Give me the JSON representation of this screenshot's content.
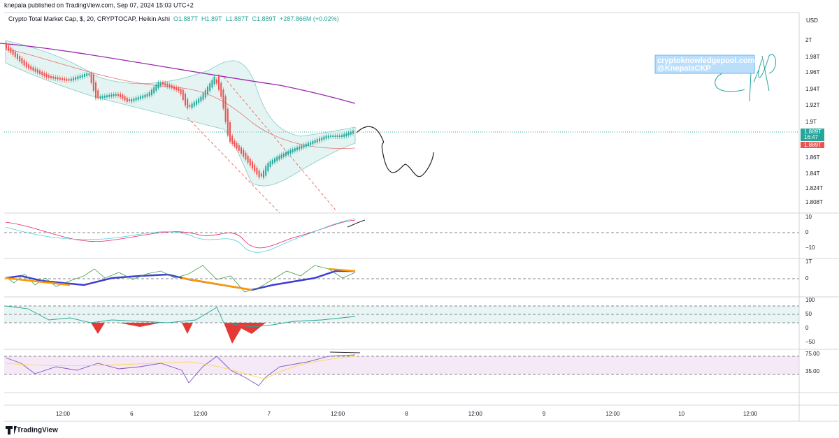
{
  "header": {
    "publisher": "knepala published on TradingView.com, Sep 07, 2024 15:03 UTC+2"
  },
  "legend": {
    "symbol": "Crypto Total Market Cap, $, 20, CRYPTOCAP, Heikin Ashi",
    "ohlc": [
      "O1.887T",
      "H1.89T",
      "L1.887T",
      "C1.889T",
      "+287.866M (+0.02%)"
    ]
  },
  "currency": "USD",
  "price_axis": [
    "2T",
    "1.98T",
    "1.96T",
    "1.94T",
    "1.92T",
    "1.9T",
    "1.86T",
    "1.84T",
    "1.824T",
    "1.808T"
  ],
  "price_tag": {
    "price": "1.889T",
    "countdown": "16:47",
    "prev": "1.889T"
  },
  "pane_axes": [
    [
      "10",
      "0",
      "−10"
    ],
    [
      "1T",
      "0"
    ],
    [
      "100",
      "50",
      "0",
      "−50"
    ],
    [
      "75.00",
      "35.00"
    ]
  ],
  "time_axis": [
    "12:00",
    "6",
    "12:00",
    "7",
    "12:00",
    "8",
    "12:00",
    "9",
    "12:00",
    "10",
    "12:00"
  ],
  "watermark": [
    "cryptoknowledgepool.com",
    "@KnepalaCKP"
  ],
  "footer": {
    "brand": "TradingView"
  }
}
